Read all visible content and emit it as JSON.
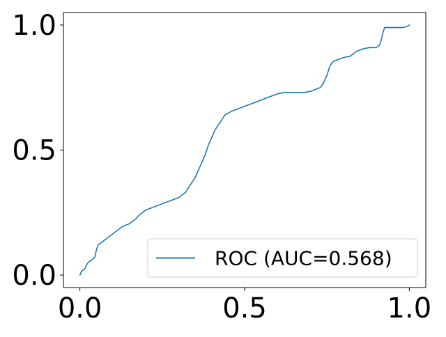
{
  "chart_data": {
    "type": "line",
    "title": "",
    "xlabel": "",
    "ylabel": "",
    "xlim": [
      -0.05,
      1.05
    ],
    "ylim": [
      -0.05,
      1.05
    ],
    "x_ticks": [
      0.0,
      0.5,
      1.0
    ],
    "x_tick_labels": [
      "0.0",
      "0.5",
      "1.0"
    ],
    "y_ticks": [
      0.0,
      0.5,
      1.0
    ],
    "y_tick_labels": [
      "0.0",
      "0.5",
      "1.0"
    ],
    "grid": false,
    "legend_position": "lower-right",
    "series": [
      {
        "name": "ROC (AUC=0.568)",
        "color": "#1f77b4",
        "x": [
          0.0,
          0.005,
          0.01,
          0.015,
          0.02,
          0.025,
          0.03,
          0.035,
          0.04,
          0.045,
          0.05,
          0.055,
          0.06,
          0.065,
          0.07,
          0.08,
          0.09,
          0.1,
          0.11,
          0.12,
          0.13,
          0.14,
          0.15,
          0.16,
          0.17,
          0.18,
          0.19,
          0.2,
          0.22,
          0.24,
          0.26,
          0.28,
          0.3,
          0.31,
          0.32,
          0.33,
          0.34,
          0.35,
          0.36,
          0.37,
          0.38,
          0.385,
          0.39,
          0.4,
          0.41,
          0.42,
          0.43,
          0.44,
          0.46,
          0.48,
          0.5,
          0.52,
          0.54,
          0.56,
          0.58,
          0.6,
          0.62,
          0.64,
          0.66,
          0.68,
          0.7,
          0.71,
          0.72,
          0.73,
          0.74,
          0.75,
          0.76,
          0.77,
          0.78,
          0.79,
          0.8,
          0.82,
          0.84,
          0.86,
          0.88,
          0.9,
          0.905,
          0.91,
          0.915,
          0.92,
          0.925,
          0.94,
          0.96,
          0.98,
          0.995,
          1.0
        ],
        "y": [
          0.0,
          0.015,
          0.02,
          0.025,
          0.04,
          0.05,
          0.055,
          0.06,
          0.065,
          0.07,
          0.1,
          0.12,
          0.125,
          0.13,
          0.135,
          0.145,
          0.155,
          0.165,
          0.175,
          0.185,
          0.195,
          0.2,
          0.205,
          0.215,
          0.225,
          0.24,
          0.25,
          0.26,
          0.27,
          0.28,
          0.29,
          0.3,
          0.31,
          0.32,
          0.33,
          0.35,
          0.37,
          0.39,
          0.42,
          0.45,
          0.48,
          0.5,
          0.52,
          0.55,
          0.58,
          0.6,
          0.62,
          0.64,
          0.655,
          0.665,
          0.675,
          0.685,
          0.695,
          0.705,
          0.715,
          0.725,
          0.73,
          0.73,
          0.73,
          0.73,
          0.735,
          0.74,
          0.745,
          0.75,
          0.77,
          0.8,
          0.84,
          0.855,
          0.86,
          0.865,
          0.87,
          0.875,
          0.895,
          0.905,
          0.91,
          0.91,
          0.915,
          0.92,
          0.94,
          0.97,
          0.99,
          0.99,
          0.99,
          0.99,
          0.995,
          1.0
        ]
      }
    ]
  }
}
